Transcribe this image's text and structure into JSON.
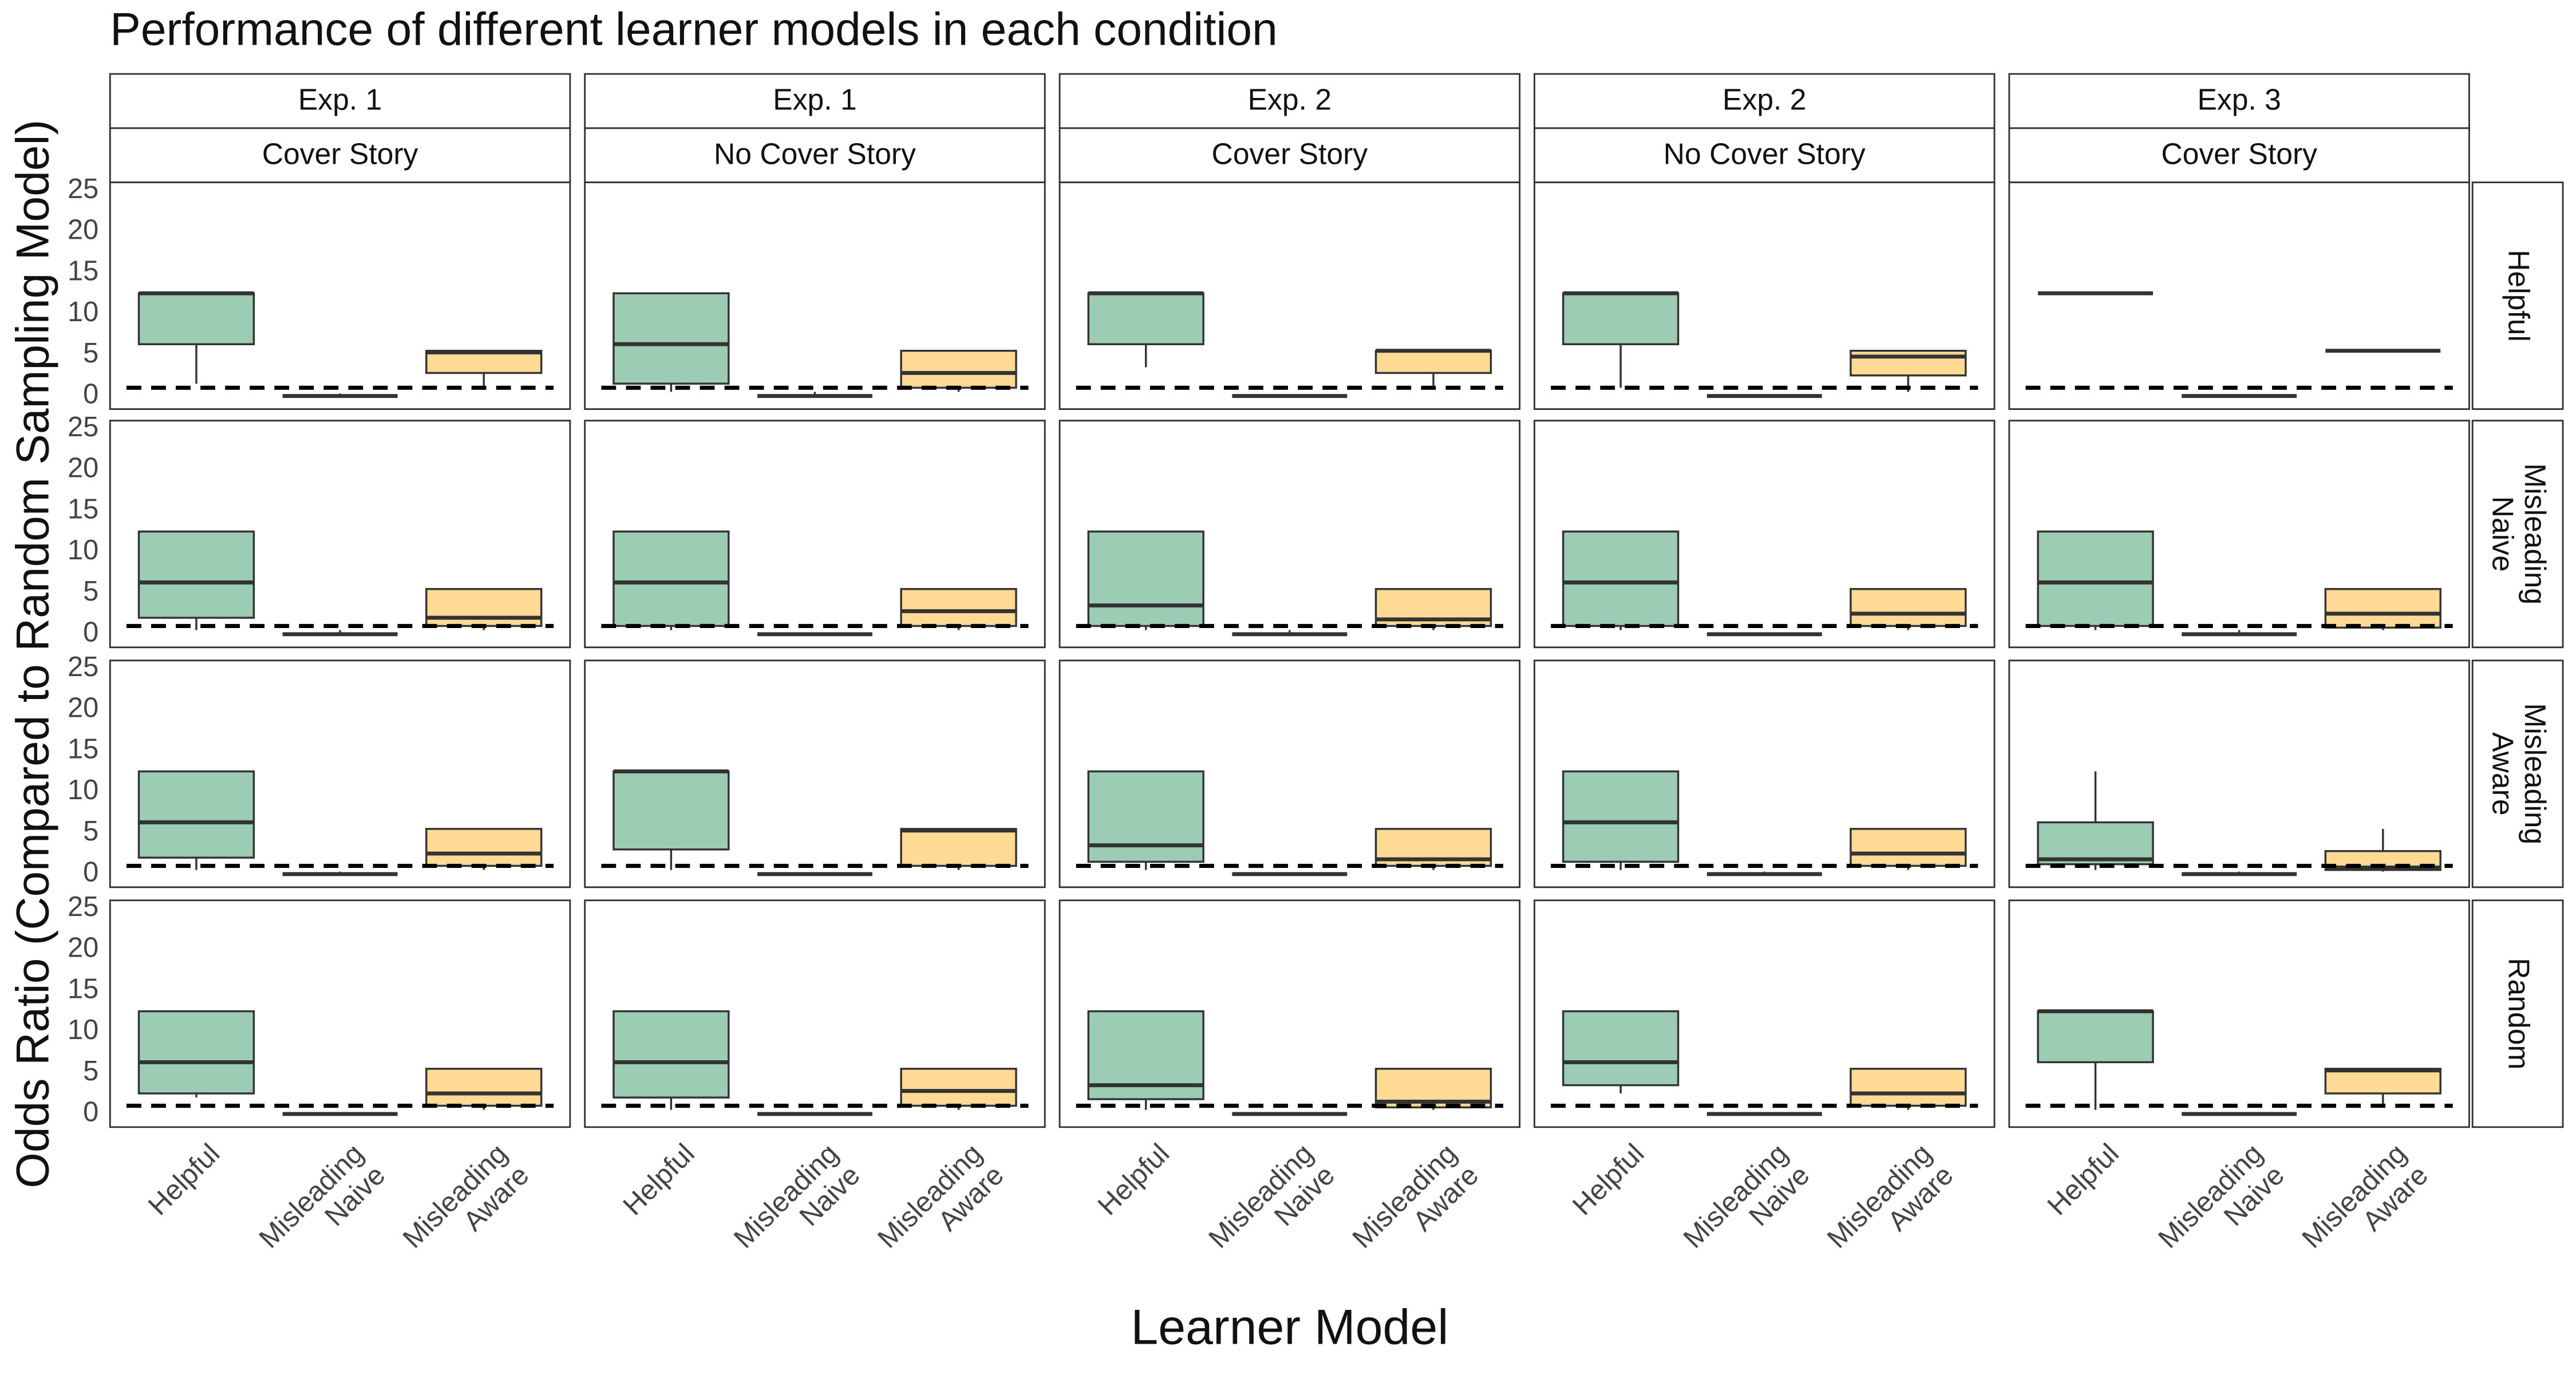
{
  "chart_data": {
    "type": "boxplot",
    "title": "Performance of different learner models in each condition",
    "x_label": "Learner Model",
    "y_label": "Odds Ratio (Compared to Random Sampling Model)",
    "categories": [
      [
        "Helpful"
      ],
      [
        "Misleading",
        "Naive"
      ],
      [
        "Misleading",
        "Aware"
      ]
    ],
    "colors": [
      "#3a9a6a",
      "#e8222f",
      "#ffb62b"
    ],
    "columns": [
      {
        "exp": "Exp. 1",
        "story": "Cover Story"
      },
      {
        "exp": "Exp. 1",
        "story": "No Cover Story"
      },
      {
        "exp": "Exp. 2",
        "story": "Cover Story"
      },
      {
        "exp": "Exp. 2",
        "story": "No Cover Story"
      },
      {
        "exp": "Exp. 3",
        "story": "Cover Story"
      }
    ],
    "rows": [
      [
        "Helpful"
      ],
      [
        "Misleading",
        "Naive"
      ],
      [
        "Misleading",
        "Aware"
      ],
      [
        "Random"
      ]
    ],
    "ylim": [
      -1.6,
      26
    ],
    "yticks": [
      0,
      5,
      10,
      15,
      20,
      25
    ],
    "reference_line": 1,
    "panels": [
      [
        [
          [
            1.5,
            6.3,
            12.5,
            12.5,
            12.5
          ],
          [
            0,
            0,
            0,
            0,
            0.3
          ],
          [
            0.8,
            2.8,
            5.3,
            5.5,
            5.5
          ]
        ],
        [
          [
            0.5,
            1.5,
            6.3,
            12.5,
            12.5
          ],
          [
            0,
            0,
            0,
            0,
            0.5
          ],
          [
            0.5,
            1,
            2.8,
            5.5,
            5.5
          ]
        ],
        [
          [
            3.5,
            6.3,
            12.5,
            12.5,
            12.5
          ],
          [
            0,
            0,
            0,
            0,
            0
          ],
          [
            1,
            2.8,
            5.5,
            5.5,
            5.5
          ]
        ],
        [
          [
            1,
            6.3,
            12.5,
            12.5,
            12.5
          ],
          [
            0,
            0,
            0,
            0,
            0
          ],
          [
            0.5,
            2.5,
            4.8,
            5.5,
            5.5
          ]
        ],
        [
          [
            12.5,
            12.5,
            12.5,
            12.5,
            12.5
          ],
          [
            0,
            0,
            0,
            0,
            0
          ],
          [
            5.5,
            5.5,
            5.5,
            5.5,
            5.5
          ]
        ]
      ],
      [
        [
          [
            0.5,
            2,
            6.3,
            12.5,
            12.5
          ],
          [
            0,
            0,
            0,
            0,
            0.5
          ],
          [
            0.5,
            1,
            2,
            5.5,
            5.5
          ]
        ],
        [
          [
            0.5,
            1,
            6.3,
            12.5,
            12.5
          ],
          [
            0,
            0,
            0,
            0,
            0
          ],
          [
            0.5,
            1,
            2.8,
            5.5,
            5.5
          ]
        ],
        [
          [
            0.5,
            1,
            3.5,
            12.5,
            12.5
          ],
          [
            0,
            0,
            0,
            0,
            0.5
          ],
          [
            0.5,
            1,
            1.8,
            5.5,
            5.5
          ]
        ],
        [
          [
            0.5,
            1,
            6.3,
            12.5,
            12.5
          ],
          [
            0,
            0,
            0,
            0,
            0
          ],
          [
            0.5,
            1,
            2.5,
            5.5,
            5.5
          ]
        ],
        [
          [
            0.5,
            1,
            6.3,
            12.5,
            12.5
          ],
          [
            0,
            0,
            0,
            0,
            0.5
          ],
          [
            0.5,
            0.8,
            2.5,
            5.5,
            5.5
          ]
        ]
      ],
      [
        [
          [
            0.5,
            2,
            6.3,
            12.5,
            12.5
          ],
          [
            0,
            0,
            0,
            0,
            0.3
          ],
          [
            0.5,
            1,
            2.5,
            5.5,
            5.5
          ]
        ],
        [
          [
            0.5,
            3,
            12.5,
            12.5,
            12.5
          ],
          [
            0,
            0,
            0,
            0,
            0
          ],
          [
            0.5,
            1,
            5.3,
            5.5,
            5.5
          ]
        ],
        [
          [
            0.5,
            1.5,
            3.5,
            12.5,
            12.5
          ],
          [
            0,
            0,
            0,
            0,
            0
          ],
          [
            0.5,
            1,
            1.8,
            5.5,
            5.5
          ]
        ],
        [
          [
            0.5,
            1.5,
            6.3,
            12.5,
            12.5
          ],
          [
            0,
            0,
            0,
            0,
            0.3
          ],
          [
            0.5,
            1,
            2.5,
            5.5,
            5.5
          ]
        ],
        [
          [
            0.5,
            1.2,
            1.8,
            6.3,
            12.5
          ],
          [
            0,
            0,
            0,
            0,
            0.3
          ],
          [
            0.3,
            0.5,
            0.8,
            2.8,
            5.5
          ]
        ]
      ],
      [
        [
          [
            2,
            2.5,
            6.3,
            12.5,
            12.5
          ],
          [
            0,
            0,
            0,
            0,
            0
          ],
          [
            0.5,
            1,
            2.5,
            5.5,
            5.5
          ]
        ],
        [
          [
            0.5,
            2,
            6.3,
            12.5,
            12.5
          ],
          [
            0,
            0,
            0,
            0,
            0
          ],
          [
            0.5,
            1,
            2.8,
            5.5,
            5.5
          ]
        ],
        [
          [
            0.5,
            1.8,
            3.5,
            12.5,
            12.5
          ],
          [
            0,
            0,
            0,
            0,
            0
          ],
          [
            0.5,
            0.8,
            1.5,
            5.5,
            5.5
          ]
        ],
        [
          [
            2.5,
            3.5,
            6.3,
            12.5,
            12.5
          ],
          [
            0,
            0,
            0,
            0,
            0
          ],
          [
            0.5,
            1,
            2.5,
            5.5,
            5.5
          ]
        ],
        [
          [
            0.5,
            6.3,
            12.5,
            12.5,
            12.5
          ],
          [
            0,
            0,
            0,
            0,
            0
          ],
          [
            1,
            2.5,
            5.3,
            5.5,
            5.5
          ]
        ]
      ]
    ]
  }
}
